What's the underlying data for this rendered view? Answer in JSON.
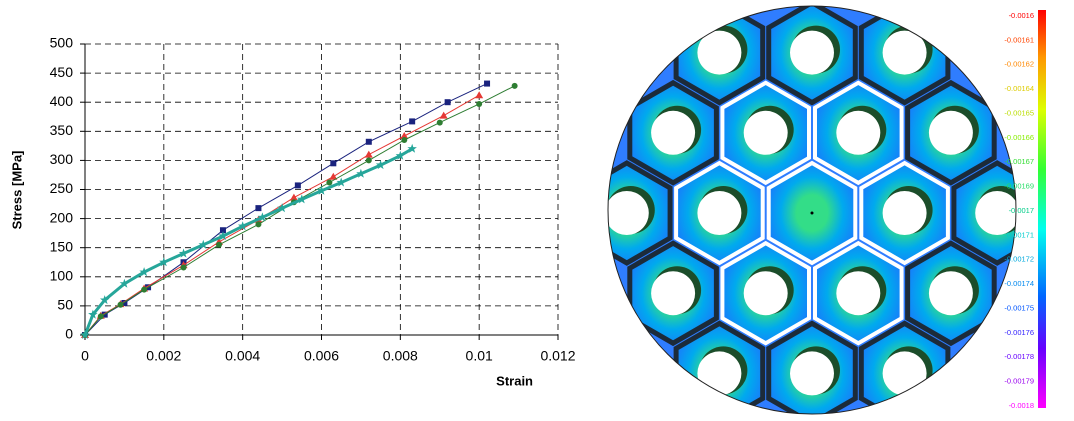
{
  "chart_data": {
    "type": "line",
    "xlabel": "Strain",
    "ylabel": "Stress [MPa]",
    "xlim": [
      0,
      0.012
    ],
    "xticks": [
      0,
      0.002,
      0.004,
      0.006,
      0.008,
      0.01,
      0.012
    ],
    "ylim": [
      0,
      500
    ],
    "yticks": [
      0,
      50,
      100,
      150,
      200,
      250,
      300,
      350,
      400,
      450,
      500
    ],
    "grid": true,
    "series": [
      {
        "color": "#1a237e",
        "marker": "square",
        "x": [
          0,
          0.0005,
          0.001,
          0.0016,
          0.0025,
          0.0035,
          0.0044,
          0.0054,
          0.0063,
          0.0072,
          0.0083,
          0.0092,
          0.0102
        ],
        "values": [
          0,
          35,
          55,
          82,
          125,
          180,
          218,
          257,
          295,
          332,
          367,
          400,
          432
        ]
      },
      {
        "color": "#e53935",
        "marker": "triangle",
        "x": [
          0,
          0.0004,
          0.0009,
          0.0015,
          0.0025,
          0.0034,
          0.0044,
          0.0053,
          0.0063,
          0.0072,
          0.0081,
          0.0091,
          0.01
        ],
        "values": [
          0,
          33,
          53,
          80,
          120,
          160,
          198,
          236,
          272,
          310,
          342,
          377,
          412
        ]
      },
      {
        "color": "#2e7d32",
        "marker": "circle",
        "x": [
          0,
          0.0004,
          0.0009,
          0.0015,
          0.0025,
          0.0034,
          0.0044,
          0.0053,
          0.0062,
          0.0072,
          0.0081,
          0.009,
          0.01,
          0.0109
        ],
        "values": [
          0,
          32,
          52,
          78,
          116,
          155,
          190,
          228,
          262,
          300,
          335,
          365,
          397,
          428
        ]
      },
      {
        "color": "#26a69a",
        "marker": "star",
        "x": [
          0,
          0.0002,
          0.0005,
          0.001,
          0.0015,
          0.002,
          0.0025,
          0.003,
          0.0035,
          0.004,
          0.0045,
          0.005,
          0.0055,
          0.006,
          0.0065,
          0.007,
          0.0075,
          0.008,
          0.0083
        ],
        "values": [
          0,
          35,
          60,
          88,
          108,
          125,
          140,
          155,
          170,
          187,
          202,
          218,
          233,
          248,
          262,
          277,
          292,
          308,
          320
        ]
      }
    ]
  },
  "colorbar": {
    "labels": [
      "-0.0016",
      "-0.00161",
      "-0.00162",
      "-0.00164",
      "-0.00165",
      "-0.00166",
      "-0.00167",
      "-0.00169",
      "-0.0017",
      "-0.00171",
      "-0.00172",
      "-0.00174",
      "-0.00175",
      "-0.00176",
      "-0.00178",
      "-0.00179",
      "-0.0018"
    ]
  }
}
